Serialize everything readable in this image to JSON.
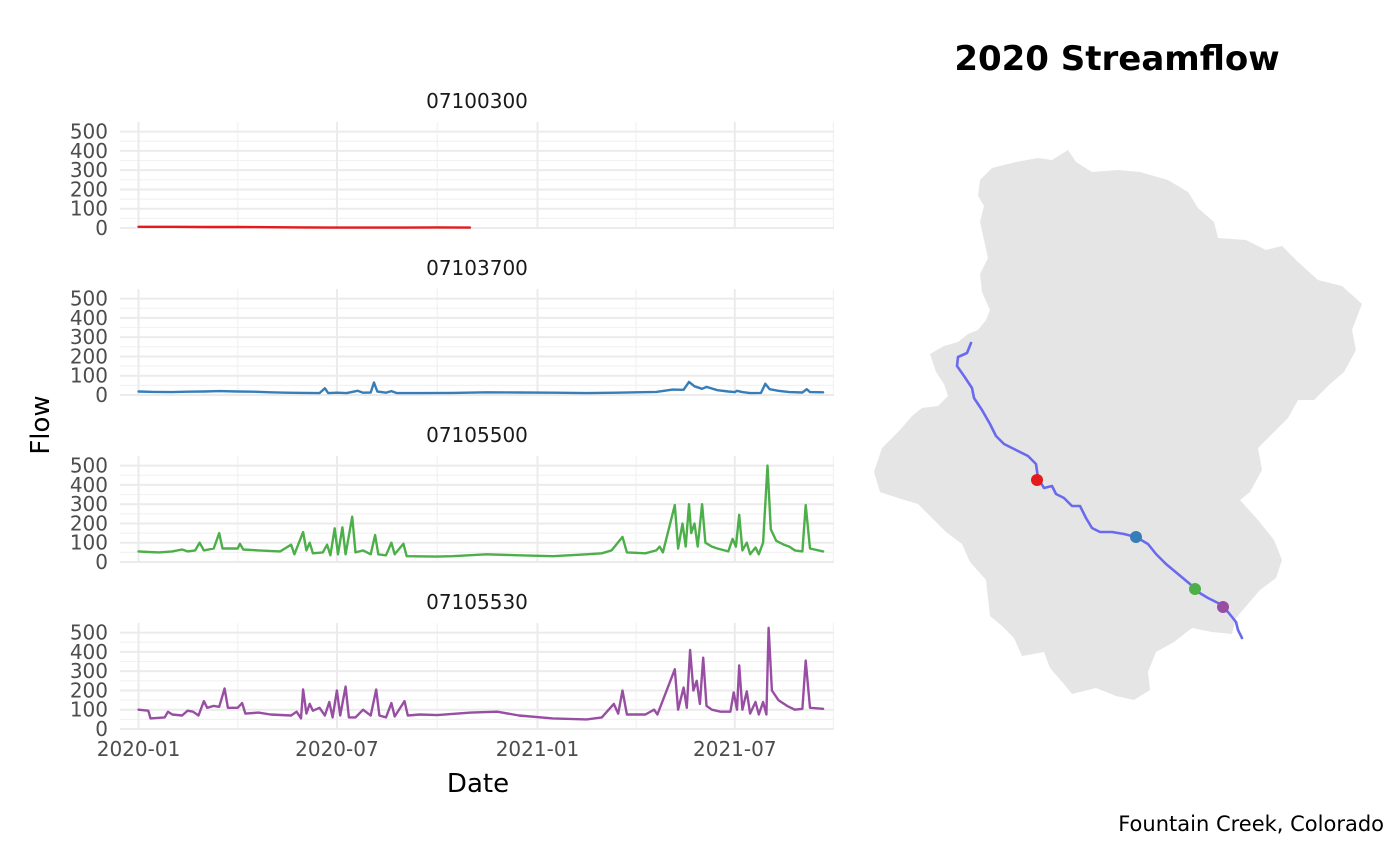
{
  "chart_data": {
    "type": "line",
    "xlabel": "Date",
    "ylabel": "Flow",
    "xlim": [
      "2019-12-15",
      "2021-09-30"
    ],
    "x_ticks": [
      "2020-01",
      "2020-07",
      "2021-01",
      "2021-07"
    ],
    "ylim": [
      0,
      550
    ],
    "y_ticks": [
      0,
      100,
      200,
      300,
      400,
      500
    ],
    "grid": true,
    "panels": [
      {
        "name": "07100300",
        "color": "#e41a1c",
        "points": [
          [
            "2020-01-01",
            6
          ],
          [
            "2020-02-01",
            6
          ],
          [
            "2020-03-01",
            5
          ],
          [
            "2020-04-01",
            5
          ],
          [
            "2020-05-01",
            4
          ],
          [
            "2020-06-01",
            3
          ],
          [
            "2020-07-01",
            2
          ],
          [
            "2020-08-01",
            2
          ],
          [
            "2020-09-01",
            2
          ],
          [
            "2020-10-01",
            3
          ],
          [
            "2020-10-31",
            2
          ]
        ]
      },
      {
        "name": "07103700",
        "color": "#377eb8",
        "points": [
          [
            "2020-01-01",
            18
          ],
          [
            "2020-01-15",
            16
          ],
          [
            "2020-02-01",
            15
          ],
          [
            "2020-02-15",
            17
          ],
          [
            "2020-03-01",
            18
          ],
          [
            "2020-03-15",
            20
          ],
          [
            "2020-04-01",
            18
          ],
          [
            "2020-04-15",
            17
          ],
          [
            "2020-05-01",
            14
          ],
          [
            "2020-05-15",
            12
          ],
          [
            "2020-06-01",
            11
          ],
          [
            "2020-06-15",
            10
          ],
          [
            "2020-06-20",
            35
          ],
          [
            "2020-06-23",
            10
          ],
          [
            "2020-07-01",
            12
          ],
          [
            "2020-07-10",
            10
          ],
          [
            "2020-07-20",
            22
          ],
          [
            "2020-07-25",
            12
          ],
          [
            "2020-08-01",
            13
          ],
          [
            "2020-08-04",
            65
          ],
          [
            "2020-08-07",
            18
          ],
          [
            "2020-08-15",
            12
          ],
          [
            "2020-08-20",
            20
          ],
          [
            "2020-08-25",
            10
          ],
          [
            "2020-09-15",
            10
          ],
          [
            "2020-10-15",
            11
          ],
          [
            "2020-11-15",
            14
          ],
          [
            "2020-12-15",
            13
          ],
          [
            "2021-01-15",
            12
          ],
          [
            "2021-02-15",
            10
          ],
          [
            "2021-03-15",
            12
          ],
          [
            "2021-04-01",
            14
          ],
          [
            "2021-04-20",
            16
          ],
          [
            "2021-05-05",
            28
          ],
          [
            "2021-05-15",
            27
          ],
          [
            "2021-05-20",
            68
          ],
          [
            "2021-05-25",
            45
          ],
          [
            "2021-06-01",
            32
          ],
          [
            "2021-06-05",
            42
          ],
          [
            "2021-06-15",
            25
          ],
          [
            "2021-06-25",
            18
          ],
          [
            "2021-07-01",
            15
          ],
          [
            "2021-07-03",
            22
          ],
          [
            "2021-07-08",
            15
          ],
          [
            "2021-07-15",
            10
          ],
          [
            "2021-07-25",
            11
          ],
          [
            "2021-07-29",
            58
          ],
          [
            "2021-08-02",
            30
          ],
          [
            "2021-08-10",
            22
          ],
          [
            "2021-08-20",
            15
          ],
          [
            "2021-09-01",
            13
          ],
          [
            "2021-09-05",
            30
          ],
          [
            "2021-09-08",
            15
          ],
          [
            "2021-09-20",
            14
          ]
        ]
      },
      {
        "name": "07105500",
        "color": "#4daf4a",
        "points": [
          [
            "2020-01-01",
            55
          ],
          [
            "2020-01-10",
            52
          ],
          [
            "2020-01-20",
            50
          ],
          [
            "2020-02-01",
            55
          ],
          [
            "2020-02-10",
            65
          ],
          [
            "2020-02-15",
            55
          ],
          [
            "2020-02-22",
            60
          ],
          [
            "2020-02-26",
            100
          ],
          [
            "2020-03-01",
            60
          ],
          [
            "2020-03-10",
            70
          ],
          [
            "2020-03-15",
            150
          ],
          [
            "2020-03-18",
            70
          ],
          [
            "2020-04-01",
            70
          ],
          [
            "2020-04-03",
            95
          ],
          [
            "2020-04-06",
            65
          ],
          [
            "2020-04-20",
            60
          ],
          [
            "2020-05-10",
            55
          ],
          [
            "2020-05-20",
            90
          ],
          [
            "2020-05-23",
            40
          ],
          [
            "2020-05-31",
            155
          ],
          [
            "2020-06-03",
            60
          ],
          [
            "2020-06-06",
            100
          ],
          [
            "2020-06-09",
            45
          ],
          [
            "2020-06-18",
            50
          ],
          [
            "2020-06-22",
            90
          ],
          [
            "2020-06-25",
            35
          ],
          [
            "2020-06-29",
            175
          ],
          [
            "2020-07-02",
            40
          ],
          [
            "2020-07-06",
            180
          ],
          [
            "2020-07-09",
            40
          ],
          [
            "2020-07-15",
            235
          ],
          [
            "2020-07-18",
            50
          ],
          [
            "2020-07-25",
            60
          ],
          [
            "2020-08-01",
            40
          ],
          [
            "2020-08-05",
            140
          ],
          [
            "2020-08-08",
            40
          ],
          [
            "2020-08-15",
            35
          ],
          [
            "2020-08-20",
            100
          ],
          [
            "2020-08-23",
            40
          ],
          [
            "2020-08-31",
            95
          ],
          [
            "2020-09-03",
            30
          ],
          [
            "2020-09-30",
            28
          ],
          [
            "2020-10-15",
            30
          ],
          [
            "2020-11-15",
            40
          ],
          [
            "2020-12-15",
            35
          ],
          [
            "2021-01-15",
            30
          ],
          [
            "2021-02-15",
            40
          ],
          [
            "2021-03-01",
            45
          ],
          [
            "2021-03-10",
            60
          ],
          [
            "2021-03-20",
            130
          ],
          [
            "2021-03-24",
            50
          ],
          [
            "2021-04-10",
            45
          ],
          [
            "2021-04-20",
            60
          ],
          [
            "2021-04-23",
            80
          ],
          [
            "2021-04-26",
            50
          ],
          [
            "2021-05-07",
            295
          ],
          [
            "2021-05-10",
            70
          ],
          [
            "2021-05-14",
            200
          ],
          [
            "2021-05-17",
            80
          ],
          [
            "2021-05-20",
            300
          ],
          [
            "2021-05-22",
            150
          ],
          [
            "2021-05-25",
            200
          ],
          [
            "2021-05-28",
            80
          ],
          [
            "2021-06-01",
            300
          ],
          [
            "2021-06-04",
            100
          ],
          [
            "2021-06-10",
            80
          ],
          [
            "2021-06-15",
            70
          ],
          [
            "2021-06-25",
            55
          ],
          [
            "2021-06-29",
            120
          ],
          [
            "2021-07-02",
            80
          ],
          [
            "2021-07-05",
            245
          ],
          [
            "2021-07-08",
            60
          ],
          [
            "2021-07-12",
            100
          ],
          [
            "2021-07-15",
            40
          ],
          [
            "2021-07-20",
            75
          ],
          [
            "2021-07-23",
            40
          ],
          [
            "2021-07-27",
            100
          ],
          [
            "2021-07-31",
            500
          ],
          [
            "2021-08-03",
            170
          ],
          [
            "2021-08-08",
            110
          ],
          [
            "2021-08-15",
            90
          ],
          [
            "2021-08-20",
            80
          ],
          [
            "2021-08-25",
            60
          ],
          [
            "2021-09-01",
            55
          ],
          [
            "2021-09-04",
            295
          ],
          [
            "2021-09-08",
            70
          ],
          [
            "2021-09-20",
            55
          ]
        ]
      },
      {
        "name": "07105530",
        "color": "#984ea3",
        "points": [
          [
            "2020-01-01",
            100
          ],
          [
            "2020-01-10",
            95
          ],
          [
            "2020-01-12",
            55
          ],
          [
            "2020-01-25",
            60
          ],
          [
            "2020-01-28",
            90
          ],
          [
            "2020-02-01",
            75
          ],
          [
            "2020-02-10",
            70
          ],
          [
            "2020-02-15",
            95
          ],
          [
            "2020-02-20",
            90
          ],
          [
            "2020-02-25",
            70
          ],
          [
            "2020-03-01",
            145
          ],
          [
            "2020-03-04",
            110
          ],
          [
            "2020-03-10",
            120
          ],
          [
            "2020-03-15",
            115
          ],
          [
            "2020-03-20",
            210
          ],
          [
            "2020-03-23",
            110
          ],
          [
            "2020-04-01",
            110
          ],
          [
            "2020-04-05",
            135
          ],
          [
            "2020-04-08",
            80
          ],
          [
            "2020-04-20",
            85
          ],
          [
            "2020-05-01",
            75
          ],
          [
            "2020-05-20",
            70
          ],
          [
            "2020-05-25",
            90
          ],
          [
            "2020-05-29",
            55
          ],
          [
            "2020-05-31",
            205
          ],
          [
            "2020-06-03",
            80
          ],
          [
            "2020-06-06",
            130
          ],
          [
            "2020-06-09",
            95
          ],
          [
            "2020-06-15",
            110
          ],
          [
            "2020-06-20",
            70
          ],
          [
            "2020-06-24",
            140
          ],
          [
            "2020-06-27",
            60
          ],
          [
            "2020-07-01",
            200
          ],
          [
            "2020-07-04",
            70
          ],
          [
            "2020-07-09",
            220
          ],
          [
            "2020-07-12",
            60
          ],
          [
            "2020-07-18",
            60
          ],
          [
            "2020-07-25",
            100
          ],
          [
            "2020-08-01",
            70
          ],
          [
            "2020-08-06",
            205
          ],
          [
            "2020-08-09",
            70
          ],
          [
            "2020-08-15",
            60
          ],
          [
            "2020-08-20",
            135
          ],
          [
            "2020-08-23",
            65
          ],
          [
            "2020-09-01",
            145
          ],
          [
            "2020-09-04",
            70
          ],
          [
            "2020-09-15",
            75
          ],
          [
            "2020-10-01",
            72
          ],
          [
            "2020-11-01",
            85
          ],
          [
            "2020-11-25",
            90
          ],
          [
            "2020-12-15",
            70
          ],
          [
            "2021-01-15",
            55
          ],
          [
            "2021-02-15",
            50
          ],
          [
            "2021-03-01",
            60
          ],
          [
            "2021-03-12",
            130
          ],
          [
            "2021-03-16",
            80
          ],
          [
            "2021-03-20",
            200
          ],
          [
            "2021-03-24",
            75
          ],
          [
            "2021-04-10",
            75
          ],
          [
            "2021-04-18",
            100
          ],
          [
            "2021-04-21",
            75
          ],
          [
            "2021-05-07",
            310
          ],
          [
            "2021-05-10",
            100
          ],
          [
            "2021-05-15",
            215
          ],
          [
            "2021-05-18",
            110
          ],
          [
            "2021-05-21",
            410
          ],
          [
            "2021-05-24",
            200
          ],
          [
            "2021-05-27",
            250
          ],
          [
            "2021-05-30",
            130
          ],
          [
            "2021-06-02",
            370
          ],
          [
            "2021-06-05",
            120
          ],
          [
            "2021-06-10",
            100
          ],
          [
            "2021-06-18",
            90
          ],
          [
            "2021-06-27",
            90
          ],
          [
            "2021-06-30",
            190
          ],
          [
            "2021-07-03",
            100
          ],
          [
            "2021-07-05",
            330
          ],
          [
            "2021-07-08",
            100
          ],
          [
            "2021-07-12",
            195
          ],
          [
            "2021-07-15",
            80
          ],
          [
            "2021-07-20",
            140
          ],
          [
            "2021-07-23",
            75
          ],
          [
            "2021-07-27",
            140
          ],
          [
            "2021-07-30",
            75
          ],
          [
            "2021-08-01",
            525
          ],
          [
            "2021-08-04",
            200
          ],
          [
            "2021-08-10",
            150
          ],
          [
            "2021-08-18",
            120
          ],
          [
            "2021-08-25",
            100
          ],
          [
            "2021-09-01",
            105
          ],
          [
            "2021-09-04",
            355
          ],
          [
            "2021-09-08",
            110
          ],
          [
            "2021-09-20",
            105
          ]
        ]
      }
    ]
  },
  "map": {
    "title": "2020 Streamflow",
    "caption": "Fountain Creek, Colorado",
    "basin_color": "#e5e5e5",
    "river_color": "#6a6aee",
    "gauges": [
      {
        "name": "07100300",
        "color": "#e41a1c"
      },
      {
        "name": "07103700",
        "color": "#377eb8"
      },
      {
        "name": "07105500",
        "color": "#4daf4a"
      },
      {
        "name": "07105530",
        "color": "#984ea3"
      }
    ]
  }
}
